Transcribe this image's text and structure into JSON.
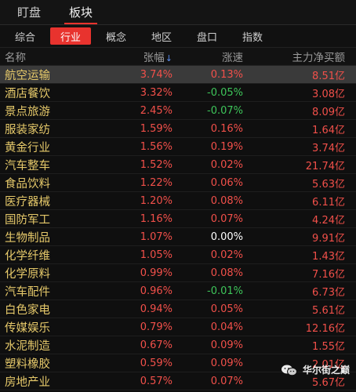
{
  "top_tabs": [
    {
      "label": "盯盘",
      "active": false
    },
    {
      "label": "板块",
      "active": true
    }
  ],
  "filters": [
    {
      "label": "综合",
      "active": false
    },
    {
      "label": "行业",
      "active": true
    },
    {
      "label": "概念",
      "active": false
    },
    {
      "label": "地区",
      "active": false
    },
    {
      "label": "盘口",
      "active": false
    },
    {
      "label": "指数",
      "active": false
    }
  ],
  "columns": {
    "name": "名称",
    "change": "张幅",
    "speed": "涨速",
    "flow": "主力净买额"
  },
  "sort_icon": "↓",
  "rows": [
    {
      "name": "航空运输",
      "change": "3.74%",
      "speed": "0.13%",
      "flow": "8.51亿"
    },
    {
      "name": "酒店餐饮",
      "change": "3.32%",
      "speed": "-0.05%",
      "flow": "3.08亿"
    },
    {
      "name": "景点旅游",
      "change": "2.45%",
      "speed": "-0.07%",
      "flow": "8.09亿"
    },
    {
      "name": "服装家纺",
      "change": "1.59%",
      "speed": "0.16%",
      "flow": "1.64亿"
    },
    {
      "name": "黄金行业",
      "change": "1.56%",
      "speed": "0.19%",
      "flow": "3.74亿"
    },
    {
      "name": "汽车整车",
      "change": "1.52%",
      "speed": "0.02%",
      "flow": "21.74亿"
    },
    {
      "name": "食品饮料",
      "change": "1.22%",
      "speed": "0.06%",
      "flow": "5.63亿"
    },
    {
      "name": "医疗器械",
      "change": "1.20%",
      "speed": "0.08%",
      "flow": "6.11亿"
    },
    {
      "name": "国防军工",
      "change": "1.16%",
      "speed": "0.07%",
      "flow": "4.24亿"
    },
    {
      "name": "生物制品",
      "change": "1.07%",
      "speed": "0.00%",
      "flow": "9.91亿"
    },
    {
      "name": "化学纤维",
      "change": "1.05%",
      "speed": "0.02%",
      "flow": "1.43亿"
    },
    {
      "name": "化学原料",
      "change": "0.99%",
      "speed": "0.08%",
      "flow": "7.16亿"
    },
    {
      "name": "汽车配件",
      "change": "0.96%",
      "speed": "-0.01%",
      "flow": "6.73亿"
    },
    {
      "name": "白色家电",
      "change": "0.94%",
      "speed": "0.05%",
      "flow": "5.61亿"
    },
    {
      "name": "传媒娱乐",
      "change": "0.79%",
      "speed": "0.04%",
      "flow": "12.16亿"
    },
    {
      "name": "水泥制造",
      "change": "0.67%",
      "speed": "0.09%",
      "flow": "1.55亿"
    },
    {
      "name": "塑料橡胶",
      "change": "0.59%",
      "speed": "0.09%",
      "flow": "2.01亿"
    },
    {
      "name": "房地产业",
      "change": "0.57%",
      "speed": "0.07%",
      "flow": "5.67亿"
    }
  ],
  "highlighted_row": 0,
  "watermark": {
    "text": "华尔街之巅",
    "icon": "wechat-icon"
  },
  "colors": {
    "up": "#f2504a",
    "down": "#3ec55a",
    "flat": "#ffffff",
    "accent": "#e8332e",
    "name": "#e6c96a",
    "sort": "#5b8ef0"
  }
}
